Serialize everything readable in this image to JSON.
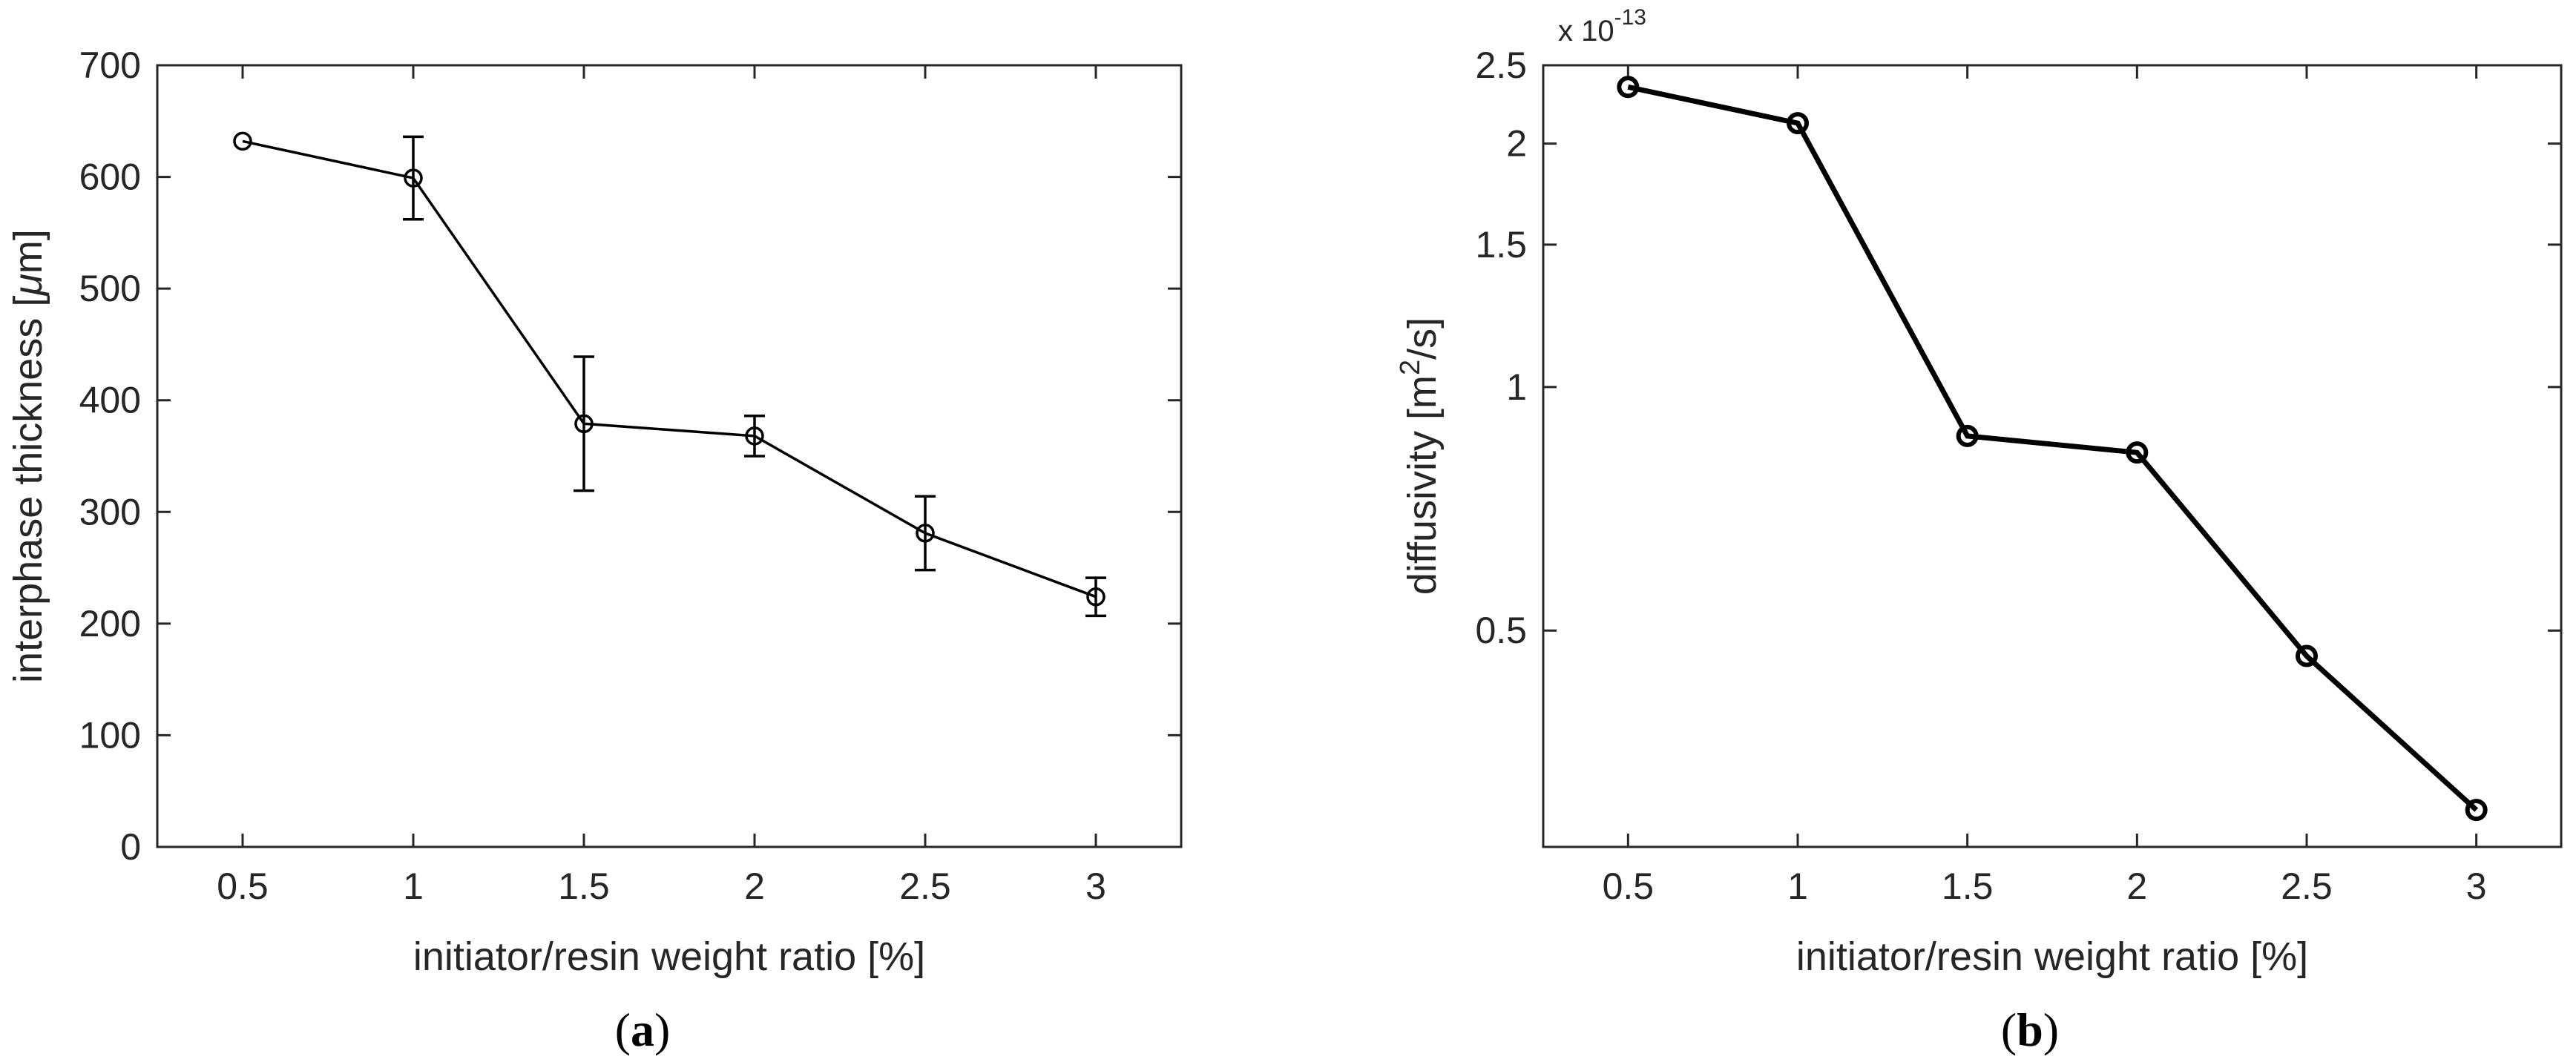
{
  "chart_data": [
    {
      "type": "line",
      "panel_label": "a",
      "title": "",
      "xlabel": "initiator/resin weight ratio [%]",
      "ylabel_pre": "interphase thickness [",
      "ylabel_mu": "μ",
      "ylabel_post": "m]",
      "xlim": [
        0.25,
        3.25
      ],
      "ylim": [
        0,
        700
      ],
      "xticks": [
        0.5,
        1,
        1.5,
        2,
        2.5,
        3
      ],
      "xtick_labels": [
        "0.5",
        "1",
        "1.5",
        "2",
        "2.5",
        "3"
      ],
      "yticks": [
        0,
        100,
        200,
        300,
        400,
        500,
        600,
        700
      ],
      "ytick_labels": [
        "0",
        "100",
        "200",
        "300",
        "400",
        "500",
        "600",
        "700"
      ],
      "series": [
        {
          "name": "interphase thickness",
          "x": [
            0.5,
            1,
            1.5,
            2,
            2.5,
            3
          ],
          "y": [
            632,
            599,
            379,
            368,
            281,
            224
          ],
          "err": [
            0,
            37,
            60,
            18,
            33,
            17
          ],
          "marker": "circle"
        }
      ],
      "grid": false
    },
    {
      "type": "line",
      "panel_label": "b",
      "title": "",
      "xlabel": "initiator/resin weight ratio [%]",
      "ylabel_pre": "diffusivity [m",
      "ylabel_sup": "2",
      "ylabel_post": "/s]",
      "yscale": "log",
      "exponent_base": "x 10",
      "exponent_power": "-13",
      "xlim": [
        0.25,
        3.25
      ],
      "ylim": [
        0.27,
        2.5
      ],
      "xticks": [
        0.5,
        1,
        1.5,
        2,
        2.5,
        3
      ],
      "xtick_labels": [
        "0.5",
        "1",
        "1.5",
        "2",
        "2.5",
        "3"
      ],
      "yticks": [
        0.5,
        1,
        1.5,
        2,
        2.5
      ],
      "ytick_labels": [
        "0.5",
        "1",
        "1.5",
        "2",
        "2.5"
      ],
      "series": [
        {
          "name": "diffusivity",
          "x": [
            0.5,
            1,
            1.5,
            2,
            2.5,
            3
          ],
          "y": [
            2.35,
            2.12,
            0.87,
            0.83,
            0.465,
            0.3
          ],
          "marker": "circle"
        }
      ],
      "grid": false
    }
  ]
}
